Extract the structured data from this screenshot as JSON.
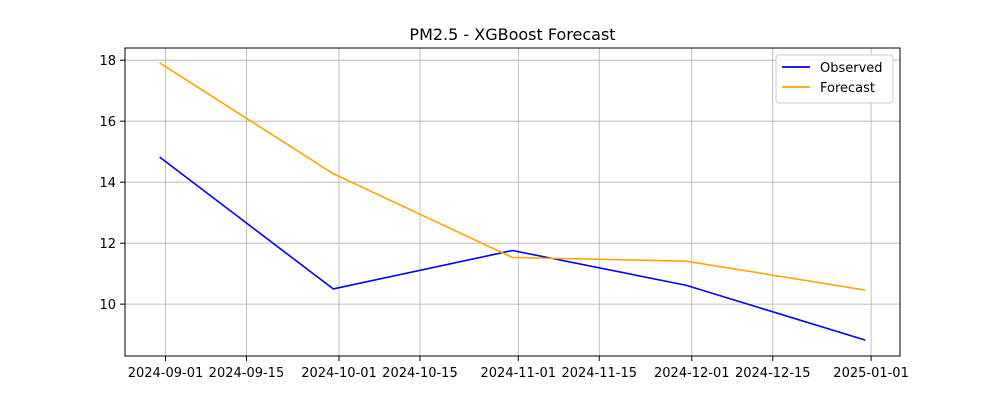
{
  "chart_data": {
    "type": "line",
    "title": "PM2.5 - XGBoost Forecast",
    "xlabel": "",
    "ylabel": "",
    "x": [
      "2024-08-31",
      "2024-09-30",
      "2024-10-31",
      "2024-11-30",
      "2024-12-31"
    ],
    "series": [
      {
        "name": "Observed",
        "color": "#0000ff",
        "values": [
          14.82,
          10.5,
          11.76,
          10.62,
          8.82
        ]
      },
      {
        "name": "Forecast",
        "color": "#ffa500",
        "values": [
          17.91,
          14.28,
          11.53,
          11.41,
          10.46
        ]
      }
    ],
    "xlim": [
      "2024-08-25",
      "2025-01-06"
    ],
    "ylim": [
      8.3,
      18.4
    ],
    "x_ticks": [
      "2024-09-01",
      "2024-09-15",
      "2024-10-01",
      "2024-10-15",
      "2024-11-01",
      "2024-11-15",
      "2024-12-01",
      "2024-12-15",
      "2025-01-01"
    ],
    "y_ticks": [
      10,
      12,
      14,
      16,
      18
    ],
    "grid": true,
    "legend": "top-right"
  }
}
